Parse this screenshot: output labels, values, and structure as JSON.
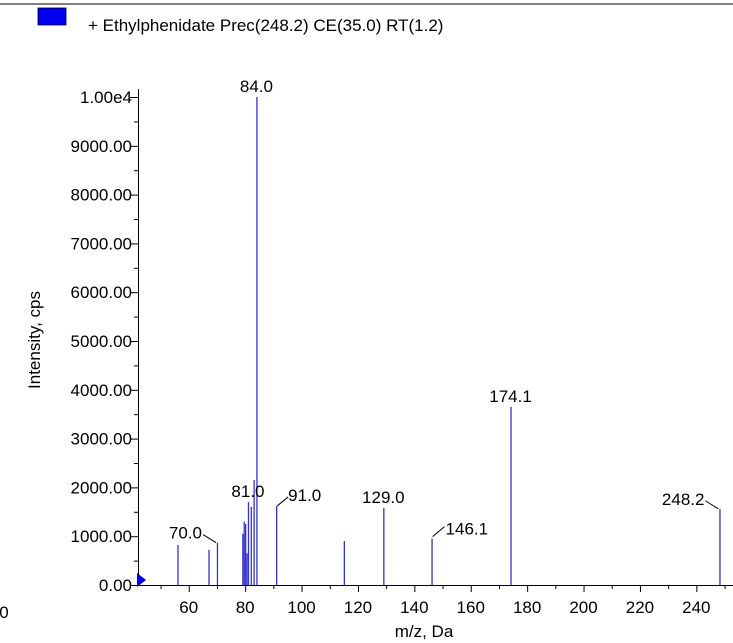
{
  "chart_data": {
    "type": "bar",
    "title": "",
    "legend": {
      "label": "+ Ethylphenidate Prec(248.2) CE(35.0) RT(1.2)",
      "color": "#0000ee",
      "placement": "top-left"
    },
    "xlabel": "m/z, Da",
    "ylabel": "Intensity, cps",
    "xlim": [
      42,
      253
    ],
    "ylim": [
      0,
      10000
    ],
    "x_ticks": [
      60,
      80,
      100,
      120,
      140,
      160,
      180,
      200,
      220,
      240
    ],
    "x_tick_labels": [
      "60",
      "80",
      "100",
      "120",
      "140",
      "160",
      "180",
      "200",
      "220",
      "240"
    ],
    "x_cut_label": "0",
    "y_ticks": [
      0,
      1000,
      2000,
      3000,
      4000,
      5000,
      6000,
      7000,
      8000,
      9000,
      10000
    ],
    "y_tick_labels": [
      "0.00",
      "1000.00",
      "2000.00",
      "3000.00",
      "4000.00",
      "5000.00",
      "6000.00",
      "7000.00",
      "8000.00",
      "9000.00",
      "1.00e4"
    ],
    "bar_color": "#3333cc",
    "peaks": [
      {
        "mz": 56.0,
        "intensity": 820
      },
      {
        "mz": 67.0,
        "intensity": 720
      },
      {
        "mz": 70.0,
        "intensity": 870
      },
      {
        "mz": 79.0,
        "intensity": 1050
      },
      {
        "mz": 79.5,
        "intensity": 1300
      },
      {
        "mz": 80.0,
        "intensity": 1250
      },
      {
        "mz": 80.5,
        "intensity": 650
      },
      {
        "mz": 81.0,
        "intensity": 1700
      },
      {
        "mz": 82.0,
        "intensity": 1600
      },
      {
        "mz": 83.0,
        "intensity": 2150
      },
      {
        "mz": 84.0,
        "intensity": 10000
      },
      {
        "mz": 91.0,
        "intensity": 1620
      },
      {
        "mz": 115.0,
        "intensity": 900
      },
      {
        "mz": 129.0,
        "intensity": 1580
      },
      {
        "mz": 146.1,
        "intensity": 950
      },
      {
        "mz": 174.1,
        "intensity": 3650
      },
      {
        "mz": 248.2,
        "intensity": 1560
      }
    ],
    "annotations": [
      {
        "text": "84.0",
        "mz": 84.0,
        "intensity": 10000,
        "leader": false
      },
      {
        "text": "174.1",
        "mz": 174.1,
        "intensity": 3650,
        "leader": false
      },
      {
        "text": "81.0",
        "mz": 81.0,
        "intensity": 1700,
        "leader": false
      },
      {
        "text": "91.0",
        "mz": 91.0,
        "intensity": 1620,
        "leader": true
      },
      {
        "text": "129.0",
        "mz": 129.0,
        "intensity": 1580,
        "leader": false
      },
      {
        "text": "248.2",
        "mz": 248.2,
        "intensity": 1560,
        "leader": true
      },
      {
        "text": "146.1",
        "mz": 146.1,
        "intensity": 950,
        "leader": true
      },
      {
        "text": "70.0",
        "mz": 70.0,
        "intensity": 870,
        "leader": true
      }
    ]
  }
}
